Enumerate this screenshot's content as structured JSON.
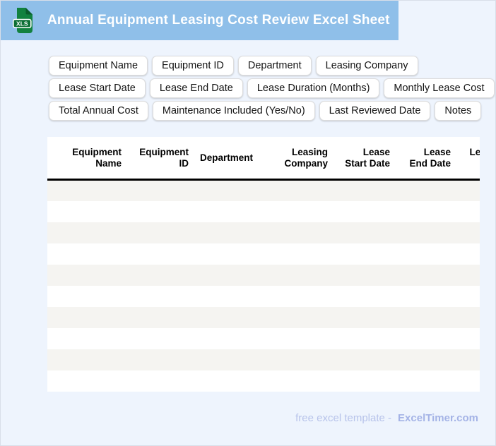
{
  "header": {
    "icon_text": "XLS",
    "title": "Annual Equipment Leasing Cost Review Excel Sheet"
  },
  "tags": {
    "row1": [
      "Equipment Name",
      "Equipment ID",
      "Department",
      "Leasing Company"
    ],
    "row2": [
      "Lease Start Date",
      "Lease End Date",
      "Lease Duration (Months)",
      "Monthly Lease Cost"
    ],
    "row3": [
      "Total Annual Cost",
      "Maintenance Included (Yes/No)",
      "Last Reviewed Date",
      "Notes"
    ]
  },
  "table": {
    "columns": [
      {
        "label": "Equipment Name"
      },
      {
        "label": "Equipment ID"
      },
      {
        "label": "Department"
      },
      {
        "label": "Leasing Company"
      },
      {
        "label": "Lease Start Date"
      },
      {
        "label": "Lease End Date"
      },
      {
        "label": "Lease Duration (Months)"
      }
    ],
    "empty_row_count": 10
  },
  "footer": {
    "text": "free excel template -",
    "brand": "ExcelTimer.com"
  },
  "colors": {
    "titlebar_blue": "#8fbfe9",
    "page_background": "#eef4fd",
    "row_stripe": "#f5f4f1",
    "icon_green": "#12813f",
    "icon_band_green": "#0d6f35",
    "footer_text": "#b7c3ea",
    "footer_brand": "#a4b3e6"
  }
}
